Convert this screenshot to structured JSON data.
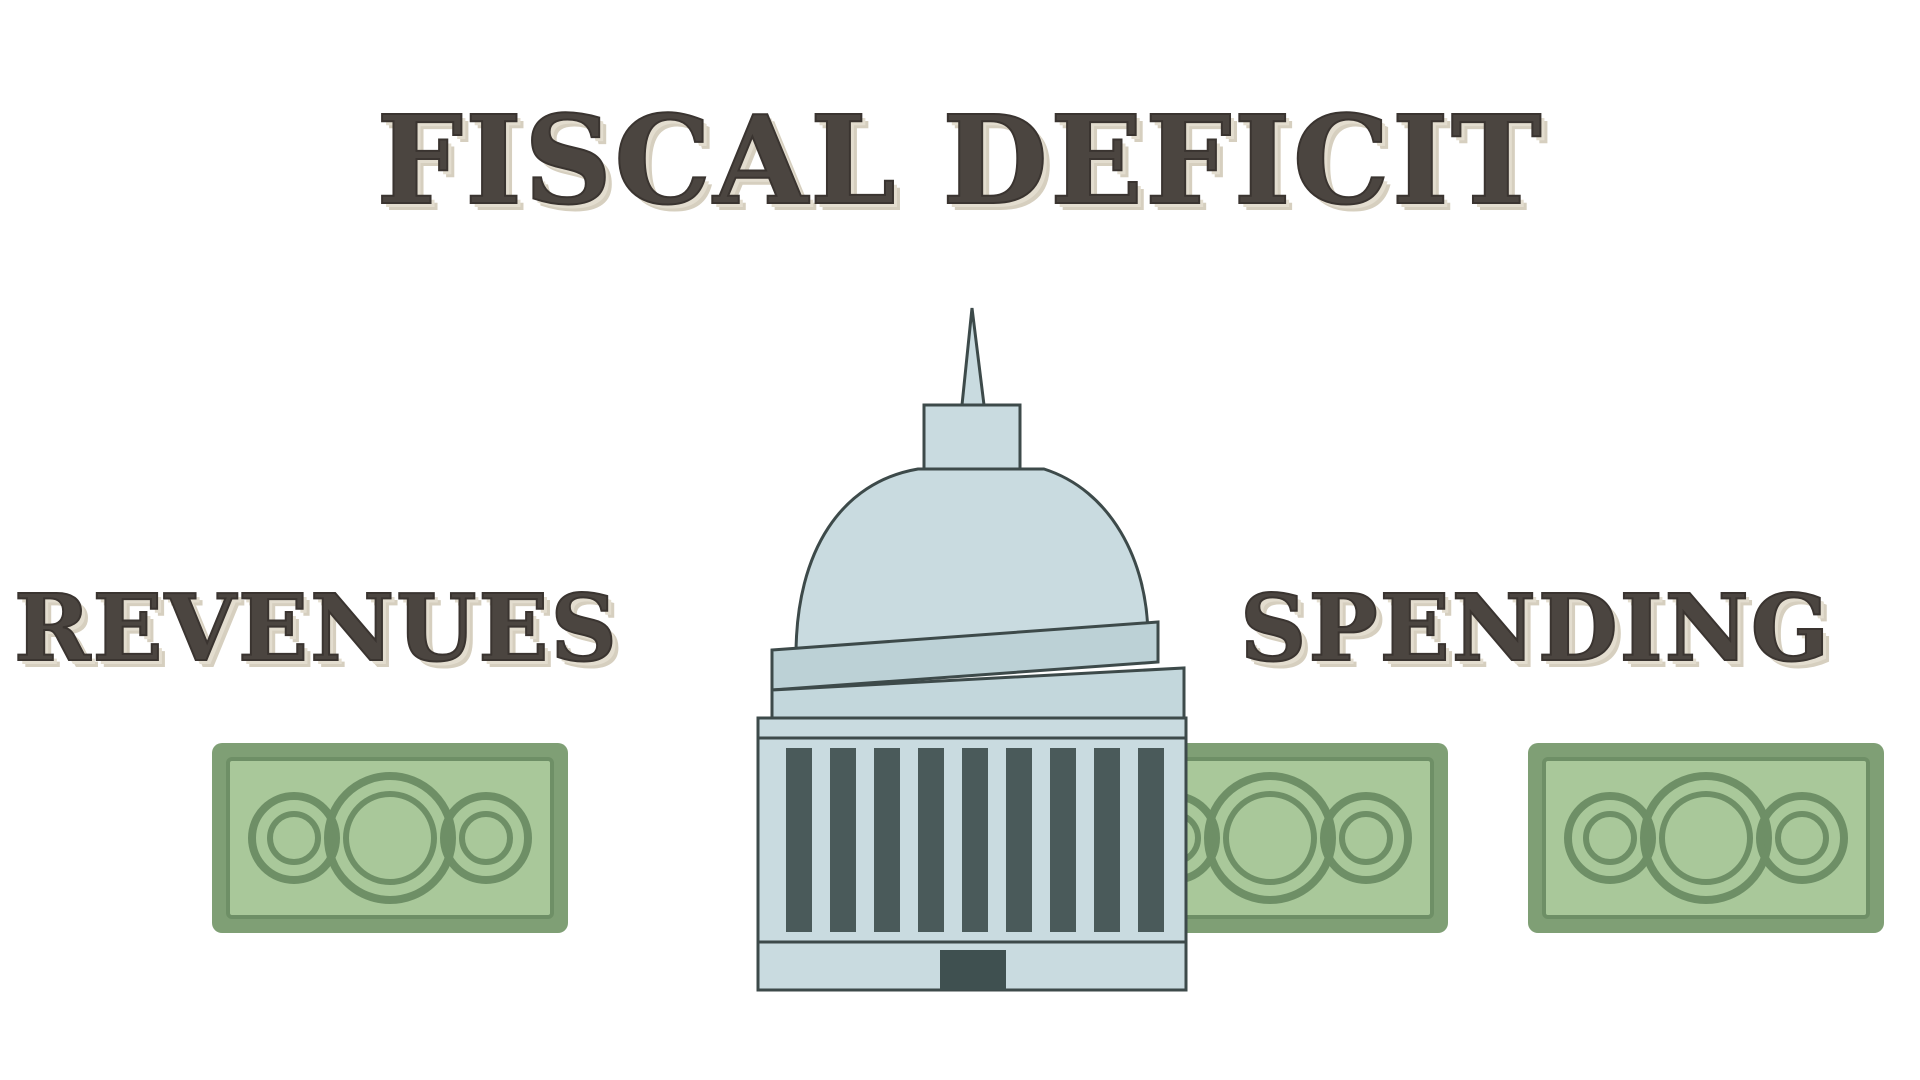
{
  "title": "FISCAL DEFICIT",
  "left_label": "REVENUES",
  "right_label": "SPENDING",
  "icons": [
    "capitol-building-icon",
    "dollar-bill-icon"
  ],
  "colors": {
    "text": "#4b4540",
    "text_shadow": "#e3ddcf",
    "bill_green": "#a9c89a",
    "bill_border": "#6e8f66",
    "building": "#c9dbe0",
    "building_outline": "#3d4a4a",
    "columns": "#4a5a5a"
  }
}
